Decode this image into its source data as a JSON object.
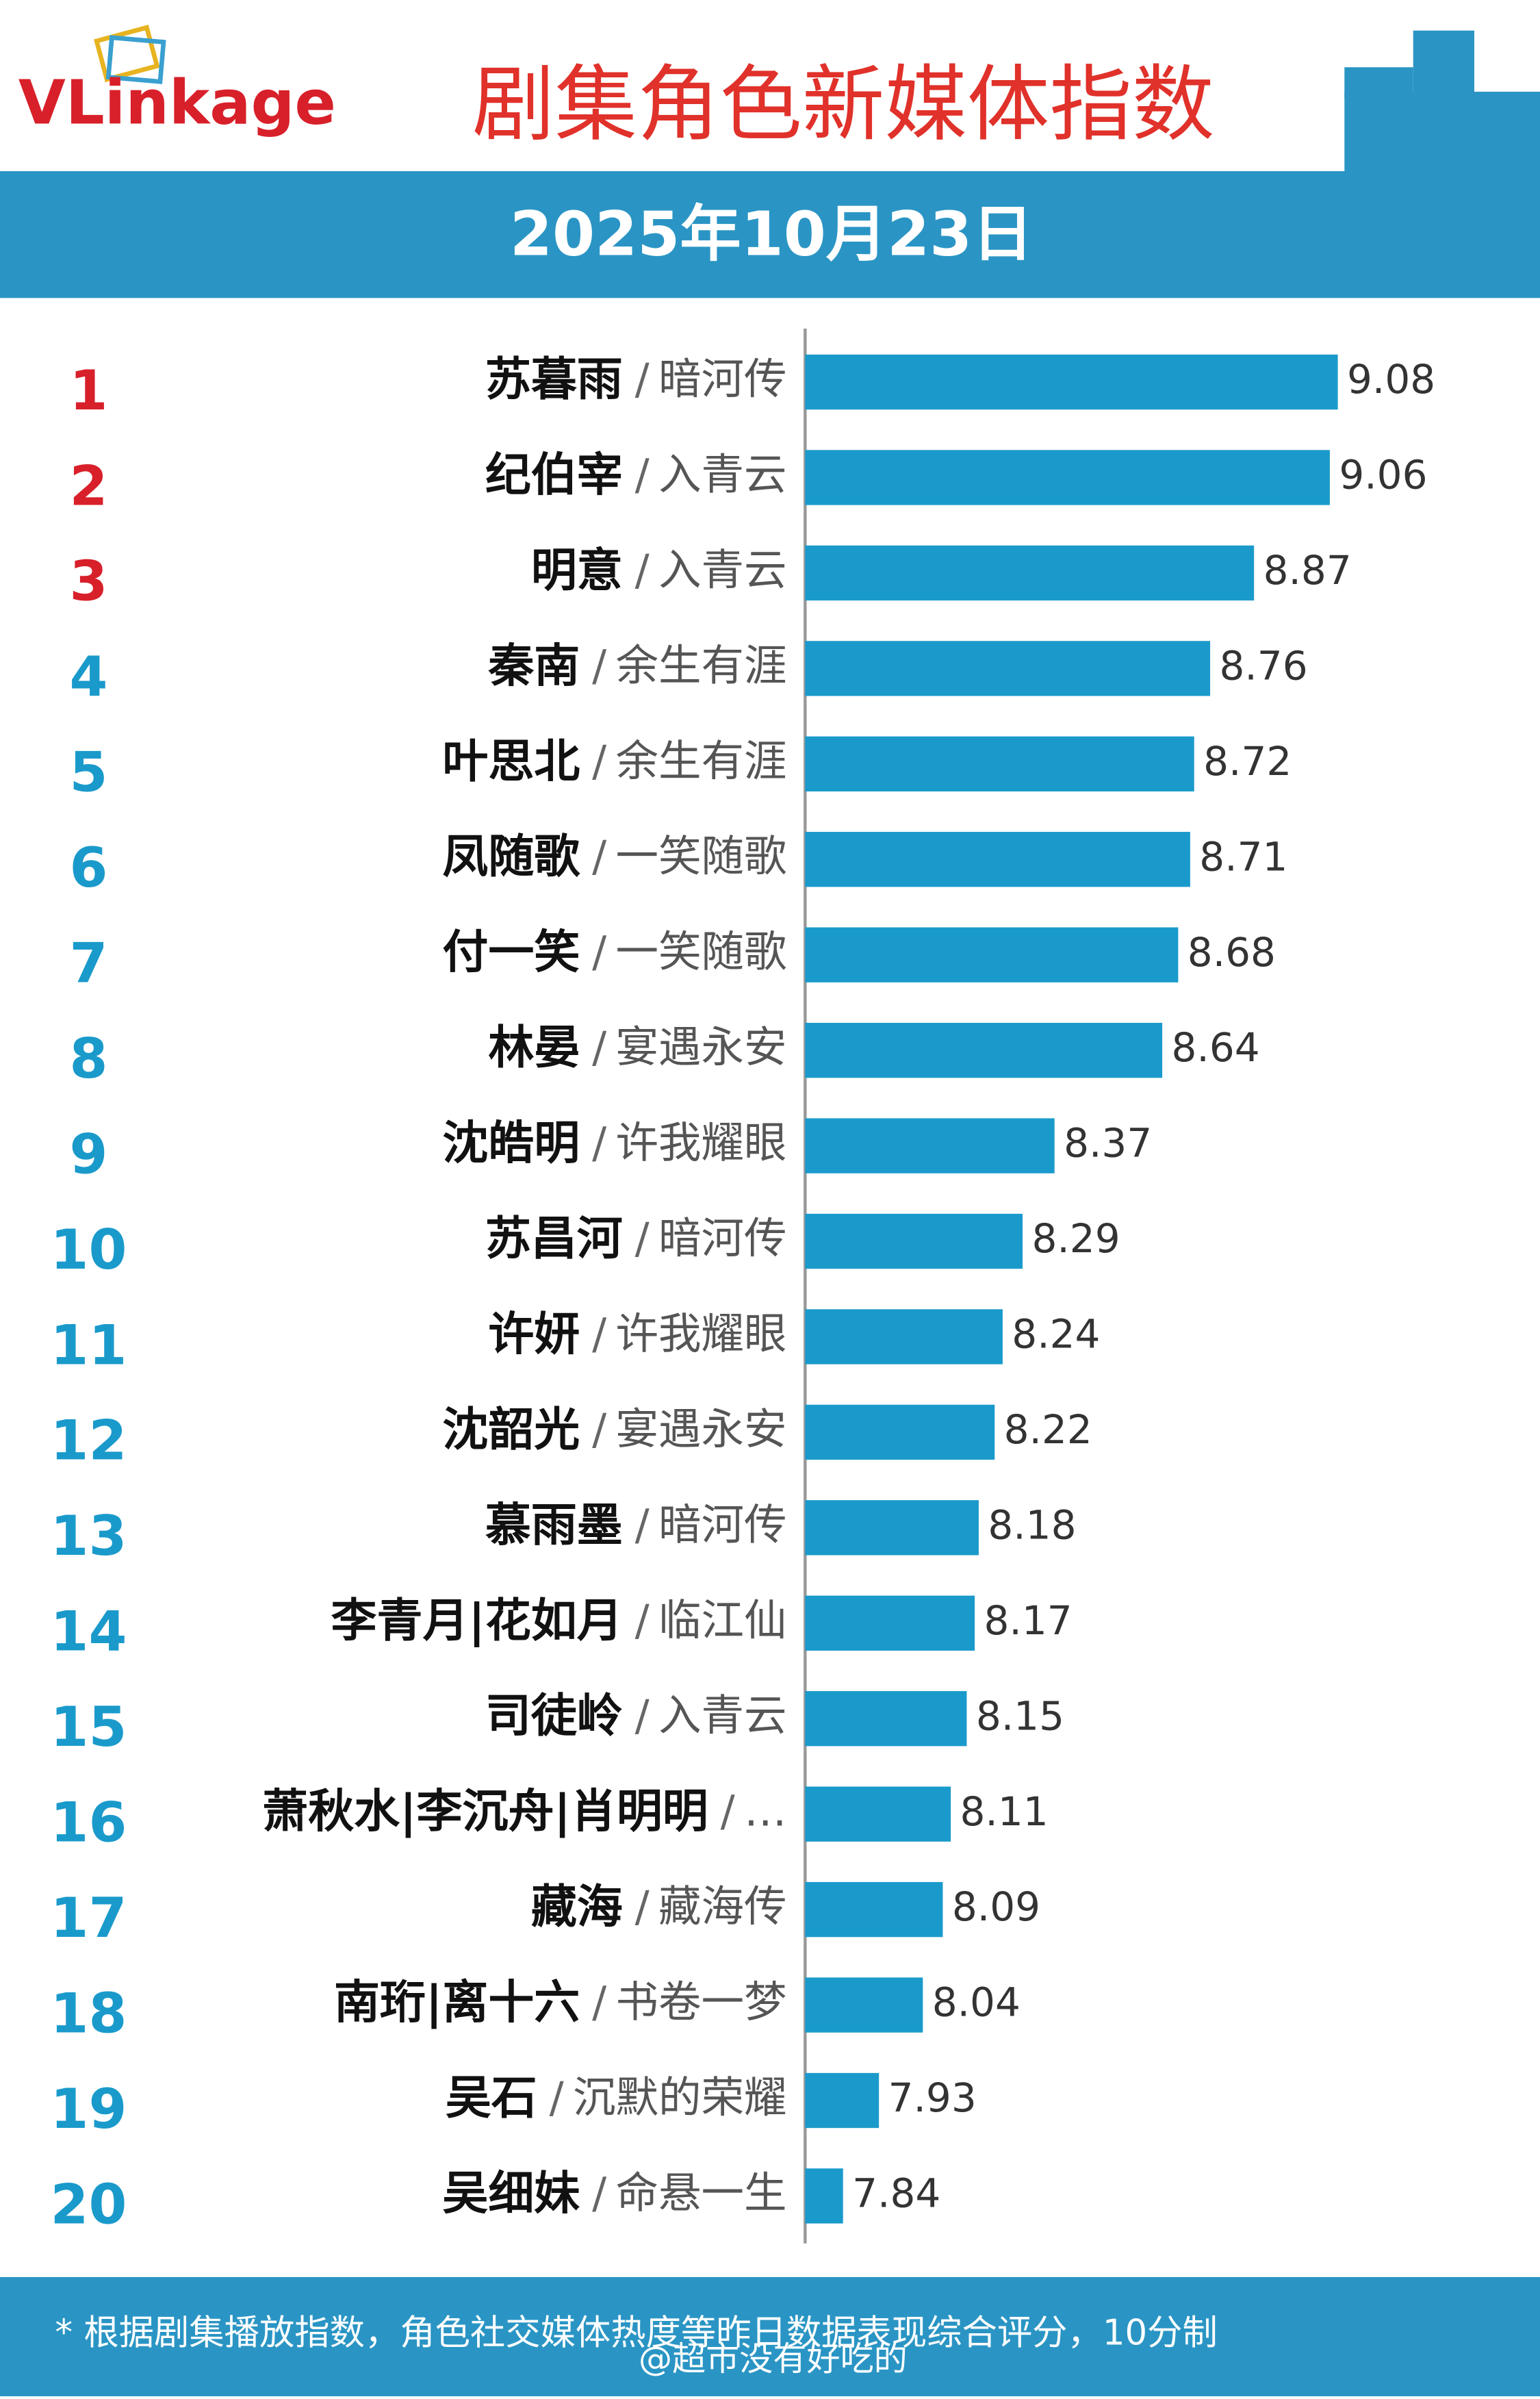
{
  "brand": "VLinkage",
  "watermark": "@超市没有好吃的",
  "chart_data": {
    "type": "bar",
    "orientation": "horizontal",
    "title": "剧集角色新媒体指数",
    "subtitle": "2025年10月23日",
    "footnote": "* 根据剧集播放指数，角色社交媒体热度等昨日数据表现综合评分，10分制",
    "separator": "/",
    "ranks": [
      1,
      2,
      3,
      4,
      5,
      6,
      7,
      8,
      9,
      10,
      11,
      12,
      13,
      14,
      15,
      16,
      17,
      18,
      19,
      20
    ],
    "categories": [
      "苏暮雨",
      "纪伯宰",
      "明意",
      "秦南",
      "叶思北",
      "凤随歌",
      "付一笑",
      "林晏",
      "沈皓明",
      "苏昌河",
      "许妍",
      "沈韶光",
      "慕雨墨",
      "李青月|花如月",
      "司徒岭",
      "萧秋水|李沉舟|肖明明",
      "藏海",
      "南珩|离十六",
      "吴石",
      "吴细妹"
    ],
    "shows": [
      "暗河传",
      "入青云",
      "入青云",
      "余生有涯",
      "余生有涯",
      "一笑随歌",
      "一笑随歌",
      "宴遇永安",
      "许我耀眼",
      "暗河传",
      "许我耀眼",
      "宴遇永安",
      "暗河传",
      "临江仙",
      "入青云",
      "…",
      "藏海传",
      "书卷一梦",
      "沉默的荣耀",
      "命悬一生"
    ],
    "values": [
      9.08,
      9.06,
      8.87,
      8.76,
      8.72,
      8.71,
      8.68,
      8.64,
      8.37,
      8.29,
      8.24,
      8.22,
      8.18,
      8.17,
      8.15,
      8.11,
      8.09,
      8.04,
      7.93,
      7.84
    ],
    "color": "#1a9acb",
    "top_rank_color": "#d8202a",
    "rank_color": "#1a9acb",
    "xlim": [
      7.745,
      9.2
    ]
  }
}
